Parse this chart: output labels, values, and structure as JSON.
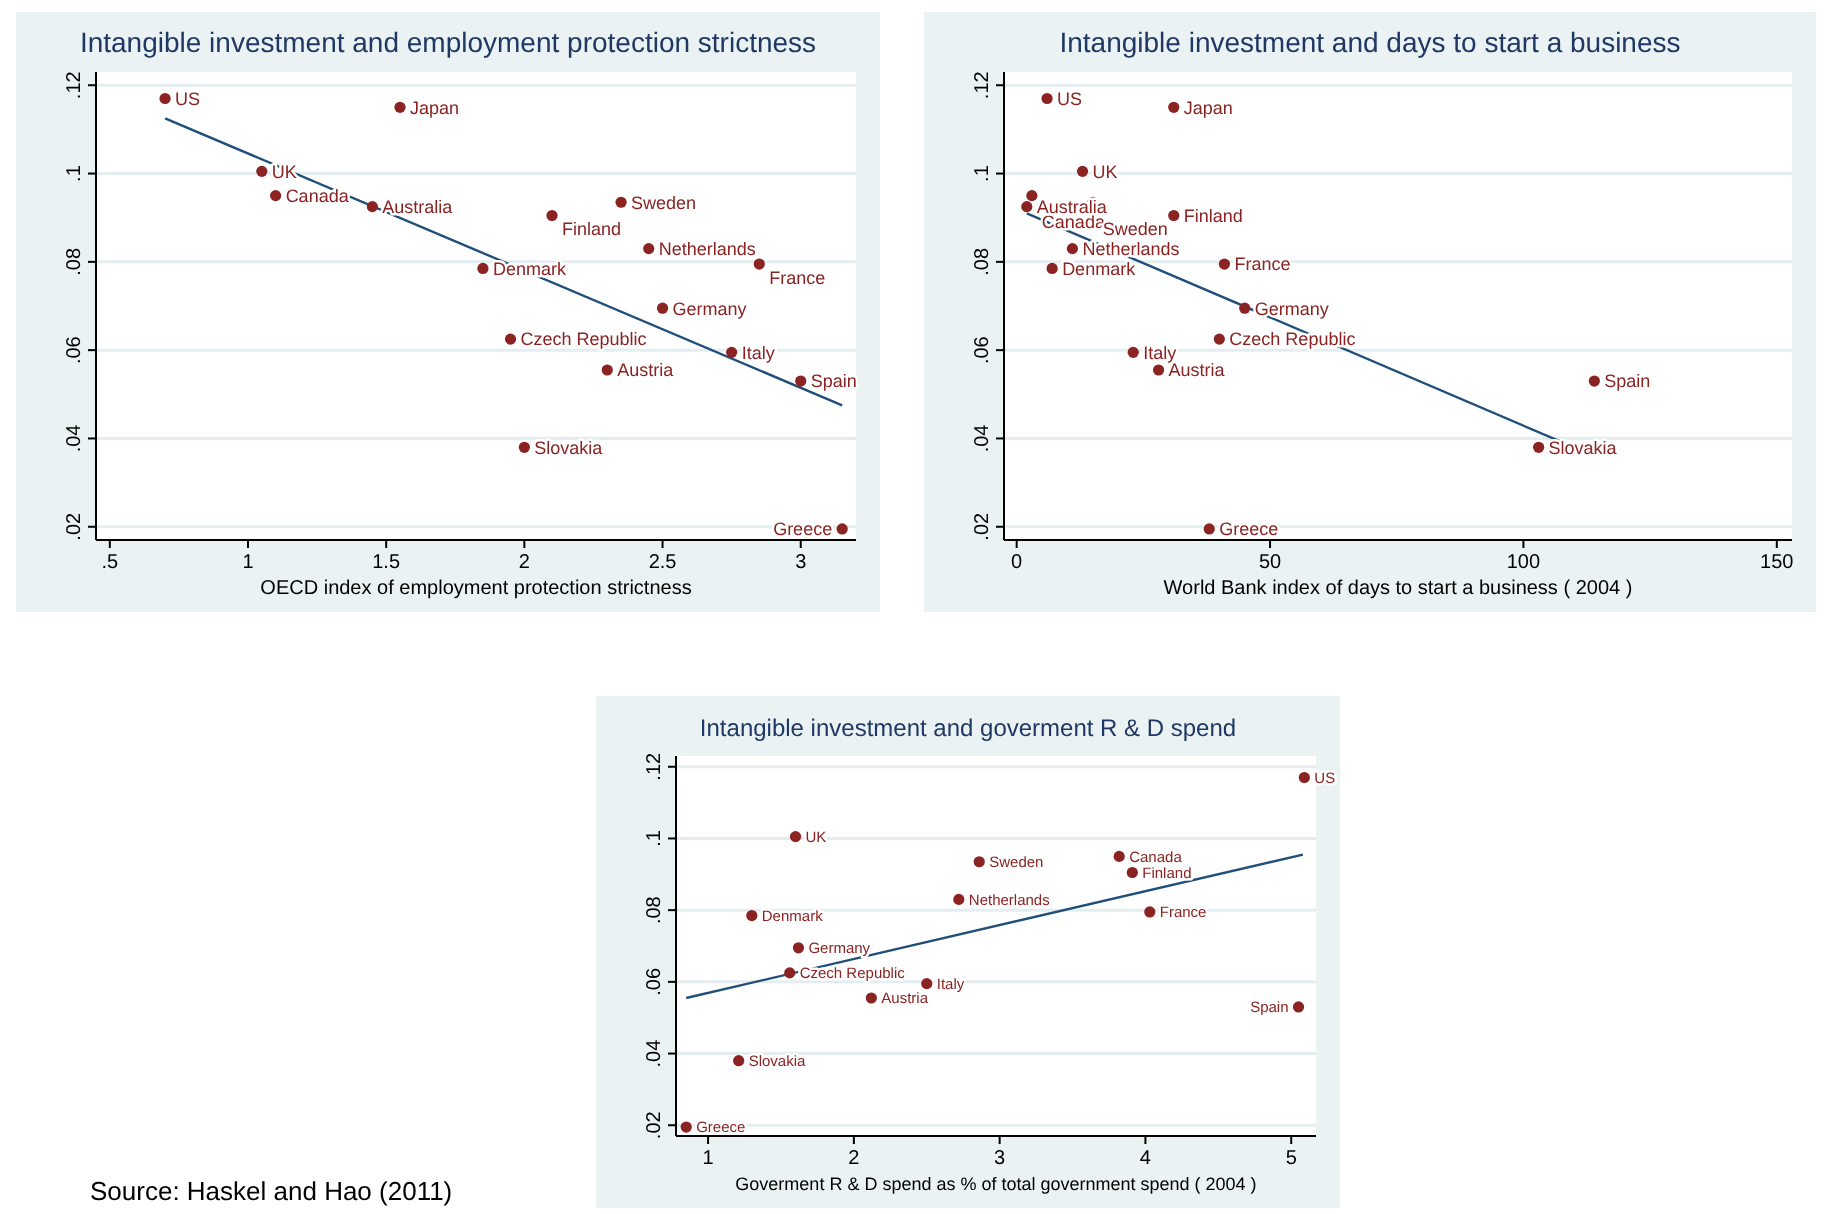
{
  "chart_data": [
    {
      "type": "scatter",
      "title": "Intangible investment and employment protection strictness",
      "xlabel": "OECD index of employment protection strictness",
      "xlim": [
        0.45,
        3.2
      ],
      "ylim": [
        0.017,
        0.123
      ],
      "xticks": [
        {
          "value": 0.5,
          "label": ".5"
        },
        1,
        1.5,
        2,
        2.5,
        3
      ],
      "yticks": [
        {
          "value": 0.02,
          "label": ".02"
        },
        {
          "value": 0.04,
          "label": ".04"
        },
        {
          "value": 0.06,
          "label": ".06"
        },
        {
          "value": 0.08,
          "label": ".08"
        },
        {
          "value": 0.1,
          "label": ".1"
        },
        {
          "value": 0.12,
          "label": ".12"
        }
      ],
      "grid": "y",
      "series": [
        {
          "type": "scatter",
          "marker": "circle",
          "color": "#8b2323",
          "x": [
            0.7,
            1.55,
            1.05,
            1.1,
            1.45,
            2.1,
            2.35,
            2.45,
            2.85,
            1.85,
            2.5,
            1.95,
            2.75,
            2.3,
            3.0,
            2.0,
            3.15
          ],
          "values": [
            0.117,
            0.115,
            0.1005,
            0.095,
            0.0925,
            0.0905,
            0.0935,
            0.083,
            0.0795,
            0.0785,
            0.0695,
            0.0625,
            0.0595,
            0.0555,
            0.053,
            0.038,
            0.0195
          ],
          "value_labels": [
            "US",
            "Japan",
            "UK",
            "Canada",
            "Australia",
            "Finland",
            "Sweden",
            "Netherlands",
            "France",
            "Denmark",
            "Germany",
            "Czech Republic",
            "Italy",
            "Austria",
            "Spain",
            "Slovakia",
            "Greece"
          ]
        },
        {
          "type": "line",
          "line_style": "solid",
          "color": "#1f4e79",
          "x": [
            0.7,
            3.15
          ],
          "values": [
            0.1125,
            0.0475
          ]
        }
      ]
    },
    {
      "type": "scatter",
      "title": "Intangible investment and days to start a business",
      "xlabel": "World Bank index of days to start a business ( 2004 )",
      "xlim": [
        -2.5,
        153
      ],
      "ylim": [
        0.017,
        0.123
      ],
      "xticks": [
        0,
        50,
        100,
        150
      ],
      "yticks": [
        {
          "value": 0.02,
          "label": ".02"
        },
        {
          "value": 0.04,
          "label": ".04"
        },
        {
          "value": 0.06,
          "label": ".06"
        },
        {
          "value": 0.08,
          "label": ".08"
        },
        {
          "value": 0.1,
          "label": ".1"
        },
        {
          "value": 0.12,
          "label": ".12"
        }
      ],
      "grid": "y",
      "series": [
        {
          "type": "scatter",
          "marker": "circle",
          "color": "#8b2323",
          "x": [
            6,
            31,
            13,
            3,
            2,
            31,
            15,
            11,
            41,
            7,
            45,
            40,
            23,
            28,
            114,
            103,
            38
          ],
          "values": [
            0.117,
            0.115,
            0.1005,
            0.095,
            0.0925,
            0.0905,
            0.0935,
            0.083,
            0.0795,
            0.0785,
            0.0695,
            0.0625,
            0.0595,
            0.0555,
            0.053,
            0.038,
            0.0195
          ],
          "value_labels": [
            "US",
            "Japan",
            "UK",
            "Canada",
            "Australia",
            "Finland",
            "Sweden",
            "Netherlands",
            "France",
            "Denmark",
            "Germany",
            "Czech Republic",
            "Italy",
            "Austria",
            "Spain",
            "Slovakia",
            "Greece"
          ]
        },
        {
          "type": "line",
          "line_style": "solid",
          "color": "#1f4e79",
          "x": [
            2,
            112
          ],
          "values": [
            0.091,
            0.037
          ]
        }
      ]
    },
    {
      "type": "scatter",
      "title": "Intangible investment and goverment R & D spend",
      "xlabel": "Goverment R & D spend as % of total government spend ( 2004 )",
      "xlim": [
        0.78,
        5.17
      ],
      "ylim": [
        0.017,
        0.123
      ],
      "xticks": [
        1,
        2,
        3,
        4,
        5
      ],
      "yticks": [
        {
          "value": 0.02,
          "label": ".02"
        },
        {
          "value": 0.04,
          "label": ".04"
        },
        {
          "value": 0.06,
          "label": ".06"
        },
        {
          "value": 0.08,
          "label": ".08"
        },
        {
          "value": 0.1,
          "label": ".1"
        },
        {
          "value": 0.12,
          "label": ".12"
        }
      ],
      "grid": "y",
      "annotations": [
        "Source: Haskel and Hao (2011)"
      ],
      "series": [
        {
          "type": "scatter",
          "marker": "circle",
          "color": "#8b2323",
          "x": [
            5.09,
            1.6,
            3.82,
            3.91,
            2.86,
            2.72,
            4.03,
            1.3,
            1.62,
            1.56,
            2.5,
            2.12,
            5.05,
            1.21,
            0.85
          ],
          "values": [
            0.117,
            0.1005,
            0.095,
            0.0905,
            0.0935,
            0.083,
            0.0795,
            0.0785,
            0.0695,
            0.0625,
            0.0595,
            0.0555,
            0.053,
            0.038,
            0.0195
          ],
          "value_labels": [
            "US",
            "UK",
            "Canada",
            "Finland",
            "Sweden",
            "Netherlands",
            "France",
            "Denmark",
            "Germany",
            "Czech Republic",
            "Italy",
            "Austria",
            "Spain",
            "Slovakia",
            "Greece"
          ]
        },
        {
          "type": "line",
          "line_style": "solid",
          "color": "#1f4e79",
          "x": [
            0.85,
            5.08
          ],
          "values": [
            0.0555,
            0.0955
          ]
        }
      ]
    }
  ]
}
